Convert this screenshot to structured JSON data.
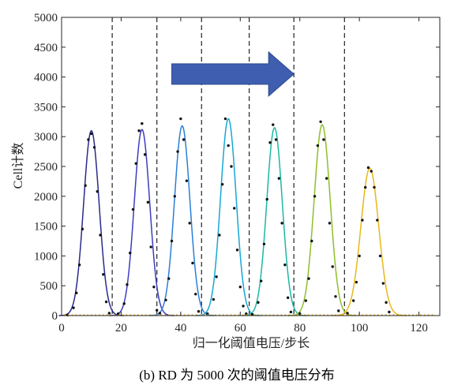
{
  "caption": "(b) RD 为 5000 次的阈值电压分布",
  "chart_data": {
    "type": "line",
    "xlabel": "归一化阈值电压/步长",
    "ylabel": "Cell计数",
    "xlim": [
      0,
      127
    ],
    "ylim": [
      0,
      5000
    ],
    "x_ticks": [
      "0",
      "20",
      "40",
      "60",
      "80",
      "100",
      "120"
    ],
    "y_ticks": [
      "0",
      "500",
      "1000",
      "1500",
      "2000",
      "2500",
      "3000",
      "3500",
      "4000",
      "4500",
      "5000"
    ],
    "boundaries": [
      17,
      32,
      47,
      63,
      78,
      95
    ],
    "arrow": {
      "x_from": 37,
      "x_to": 78,
      "y": 4050,
      "color": "#3f5eaf"
    },
    "baseline_dots_color": "#d4a017",
    "sample_dot_color": "#111111",
    "series": [
      {
        "color": "#2a2a8c",
        "center": 10,
        "peak": 3100,
        "sigma": 2.6,
        "points": [
          [
            2,
            10
          ],
          [
            4,
            130
          ],
          [
            5,
            380
          ],
          [
            6,
            850
          ],
          [
            7,
            1450
          ],
          [
            8,
            2180
          ],
          [
            9,
            2950
          ],
          [
            10,
            3050
          ],
          [
            11,
            2820
          ],
          [
            12,
            2080
          ],
          [
            13,
            1350
          ],
          [
            14,
            690
          ],
          [
            15,
            230
          ],
          [
            16,
            40
          ]
        ]
      },
      {
        "color": "#3d3dbf",
        "center": 27,
        "peak": 3120,
        "sigma": 2.6,
        "points": [
          [
            19,
            30
          ],
          [
            21,
            200
          ],
          [
            22,
            520
          ],
          [
            23,
            1050
          ],
          [
            24,
            1780
          ],
          [
            25,
            2550
          ],
          [
            26,
            3100
          ],
          [
            27,
            3220
          ],
          [
            28,
            2700
          ],
          [
            29,
            1900
          ],
          [
            30,
            1150
          ],
          [
            31,
            480
          ],
          [
            32,
            90
          ]
        ]
      },
      {
        "color": "#2a7fd6",
        "center": 40.5,
        "peak": 3180,
        "sigma": 2.6,
        "points": [
          [
            33,
            40
          ],
          [
            35,
            260
          ],
          [
            36,
            620
          ],
          [
            37,
            1250
          ],
          [
            38,
            2000
          ],
          [
            39,
            2750
          ],
          [
            40,
            3300
          ],
          [
            41,
            2950
          ],
          [
            42,
            2260
          ],
          [
            43,
            1550
          ],
          [
            44,
            880
          ],
          [
            45,
            360
          ],
          [
            46,
            70
          ]
        ]
      },
      {
        "color": "#17a7d6",
        "center": 56,
        "peak": 3300,
        "sigma": 2.6,
        "points": [
          [
            49,
            30
          ],
          [
            51,
            270
          ],
          [
            52,
            650
          ],
          [
            53,
            1350
          ],
          [
            54,
            2200
          ],
          [
            55,
            3300
          ],
          [
            56,
            2850
          ],
          [
            57,
            2500
          ],
          [
            58,
            1800
          ],
          [
            59,
            1100
          ],
          [
            60,
            480
          ],
          [
            61,
            160
          ],
          [
            62,
            30
          ]
        ]
      },
      {
        "color": "#1bb8a4",
        "center": 71.5,
        "peak": 3150,
        "sigma": 2.6,
        "points": [
          [
            64,
            20
          ],
          [
            66,
            220
          ],
          [
            67,
            580
          ],
          [
            68,
            1200
          ],
          [
            69,
            1950
          ],
          [
            70,
            2900
          ],
          [
            71,
            3200
          ],
          [
            72,
            2950
          ],
          [
            73,
            2300
          ],
          [
            74,
            1550
          ],
          [
            75,
            850
          ],
          [
            76,
            300
          ],
          [
            77,
            60
          ]
        ]
      },
      {
        "color": "#8fbf2a",
        "center": 87.5,
        "peak": 3200,
        "sigma": 2.7,
        "points": [
          [
            80,
            30
          ],
          [
            82,
            250
          ],
          [
            83,
            620
          ],
          [
            84,
            1250
          ],
          [
            85,
            2000
          ],
          [
            86,
            2850
          ],
          [
            87,
            3250
          ],
          [
            88,
            2950
          ],
          [
            89,
            2300
          ],
          [
            90,
            1550
          ],
          [
            91,
            820
          ],
          [
            92,
            320
          ],
          [
            93,
            80
          ]
        ]
      },
      {
        "color": "#e8b71a",
        "center": 103.5,
        "peak": 2470,
        "sigma": 3.0,
        "points": [
          [
            96,
            40
          ],
          [
            98,
            250
          ],
          [
            99,
            560
          ],
          [
            100,
            1000
          ],
          [
            101,
            1600
          ],
          [
            102,
            2150
          ],
          [
            103,
            2480
          ],
          [
            104,
            2420
          ],
          [
            105,
            2150
          ],
          [
            106,
            1600
          ],
          [
            107,
            1000
          ],
          [
            108,
            540
          ],
          [
            109,
            220
          ],
          [
            110,
            60
          ]
        ]
      }
    ]
  }
}
